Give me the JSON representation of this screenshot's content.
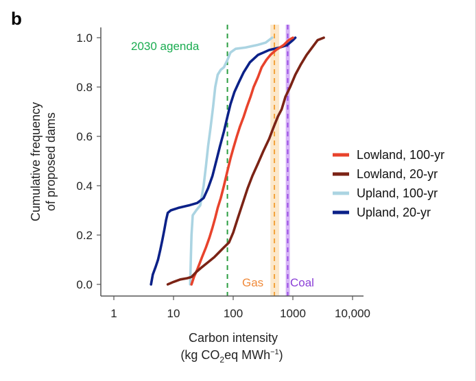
{
  "panel_label": "b",
  "chart_data": {
    "type": "line",
    "title": "",
    "xlabel_line1": "Carbon intensity",
    "xlabel_line2_prefix": "(kg CO",
    "xlabel_line2_sub": "2",
    "xlabel_line2_mid": "eq MWh",
    "xlabel_line2_sup": "−1",
    "xlabel_line2_suffix": ")",
    "ylabel_line1": "Cumulative frequency",
    "ylabel_line2": "of proposed dams",
    "xscale": "log",
    "xlim": [
      0.55,
      16000
    ],
    "ylim": [
      -0.04,
      1.04
    ],
    "xticks": [
      1,
      10,
      100,
      1000,
      10000
    ],
    "xtick_labels": [
      "1",
      "10",
      "100",
      "1000",
      "10,000"
    ],
    "yticks": [
      0.0,
      0.2,
      0.4,
      0.6,
      0.8,
      1.0
    ],
    "ytick_labels": [
      "0.0",
      "0.2",
      "0.4",
      "0.6",
      "0.8",
      "1.0"
    ],
    "grid": false,
    "legend_position": "right",
    "series": [
      {
        "name": "Lowland, 100-yr",
        "color": "#e8432c",
        "points": [
          [
            20,
            0.0
          ],
          [
            22,
            0.03
          ],
          [
            25,
            0.06
          ],
          [
            30,
            0.11
          ],
          [
            35,
            0.15
          ],
          [
            40,
            0.19
          ],
          [
            45,
            0.23
          ],
          [
            50,
            0.27
          ],
          [
            55,
            0.31
          ],
          [
            62,
            0.35
          ],
          [
            70,
            0.4
          ],
          [
            80,
            0.46
          ],
          [
            90,
            0.51
          ],
          [
            100,
            0.55
          ],
          [
            115,
            0.6
          ],
          [
            130,
            0.64
          ],
          [
            150,
            0.68
          ],
          [
            170,
            0.72
          ],
          [
            195,
            0.76
          ],
          [
            220,
            0.8
          ],
          [
            260,
            0.84
          ],
          [
            300,
            0.88
          ],
          [
            360,
            0.91
          ],
          [
            420,
            0.93
          ],
          [
            520,
            0.95
          ],
          [
            700,
            0.97
          ],
          [
            850,
            0.99
          ],
          [
            1000,
            1.0
          ]
        ]
      },
      {
        "name": "Lowland, 20-yr",
        "color": "#7b2315",
        "points": [
          [
            8,
            0.0
          ],
          [
            10,
            0.01
          ],
          [
            13,
            0.02
          ],
          [
            17,
            0.025
          ],
          [
            20,
            0.03
          ],
          [
            24,
            0.05
          ],
          [
            30,
            0.07
          ],
          [
            38,
            0.09
          ],
          [
            48,
            0.11
          ],
          [
            58,
            0.13
          ],
          [
            70,
            0.15
          ],
          [
            85,
            0.17
          ],
          [
            100,
            0.21
          ],
          [
            120,
            0.27
          ],
          [
            145,
            0.33
          ],
          [
            175,
            0.39
          ],
          [
            210,
            0.44
          ],
          [
            260,
            0.49
          ],
          [
            320,
            0.54
          ],
          [
            400,
            0.59
          ],
          [
            480,
            0.64
          ],
          [
            560,
            0.68
          ],
          [
            650,
            0.71
          ],
          [
            750,
            0.76
          ],
          [
            900,
            0.8
          ],
          [
            1100,
            0.85
          ],
          [
            1350,
            0.89
          ],
          [
            1700,
            0.93
          ],
          [
            2100,
            0.96
          ],
          [
            2600,
            0.99
          ],
          [
            3300,
            1.0
          ]
        ]
      },
      {
        "name": "Upland, 100-yr",
        "color": "#abd4e2",
        "points": [
          [
            19,
            0.0
          ],
          [
            19.5,
            0.1
          ],
          [
            20,
            0.2
          ],
          [
            21,
            0.28
          ],
          [
            24,
            0.3
          ],
          [
            28,
            0.32
          ],
          [
            32,
            0.4
          ],
          [
            35,
            0.48
          ],
          [
            38,
            0.56
          ],
          [
            42,
            0.64
          ],
          [
            46,
            0.72
          ],
          [
            50,
            0.8
          ],
          [
            55,
            0.85
          ],
          [
            62,
            0.87
          ],
          [
            70,
            0.88
          ],
          [
            80,
            0.91
          ],
          [
            90,
            0.94
          ],
          [
            110,
            0.955
          ],
          [
            160,
            0.96
          ],
          [
            250,
            0.97
          ],
          [
            350,
            0.98
          ],
          [
            450,
            1.0
          ]
        ]
      },
      {
        "name": "Upland, 20-yr",
        "color": "#0b2188",
        "points": [
          [
            4.2,
            0.0
          ],
          [
            4.5,
            0.04
          ],
          [
            5,
            0.07
          ],
          [
            5.5,
            0.1
          ],
          [
            6,
            0.14
          ],
          [
            6.5,
            0.18
          ],
          [
            7,
            0.22
          ],
          [
            7.5,
            0.26
          ],
          [
            8,
            0.29
          ],
          [
            9,
            0.3
          ],
          [
            12,
            0.31
          ],
          [
            18,
            0.32
          ],
          [
            25,
            0.33
          ],
          [
            32,
            0.35
          ],
          [
            38,
            0.39
          ],
          [
            45,
            0.44
          ],
          [
            52,
            0.5
          ],
          [
            60,
            0.56
          ],
          [
            70,
            0.62
          ],
          [
            80,
            0.68
          ],
          [
            90,
            0.73
          ],
          [
            105,
            0.78
          ],
          [
            125,
            0.82
          ],
          [
            150,
            0.86
          ],
          [
            190,
            0.9
          ],
          [
            260,
            0.93
          ],
          [
            400,
            0.95
          ],
          [
            600,
            0.96
          ],
          [
            800,
            0.97
          ],
          [
            1000,
            0.99
          ],
          [
            1100,
            1.0
          ]
        ]
      }
    ],
    "reference_lines": [
      {
        "name": "2030 agenda",
        "x": 80,
        "color": "#2a9d3f",
        "label_color": "#1aac50",
        "style": "dashed"
      },
      {
        "name": "Gas",
        "x": 490,
        "band": [
          420,
          590
        ],
        "color": "#f2a33b",
        "band_color": "#fbe4c2",
        "label_color": "#f08a3a",
        "style": "dashed"
      },
      {
        "name": "Coal",
        "x": 820,
        "band": [
          760,
          890
        ],
        "color": "#9a4fe3",
        "band_color": "#cfa6f6",
        "label_color": "#8a3ed6",
        "style": "dashed"
      }
    ]
  }
}
